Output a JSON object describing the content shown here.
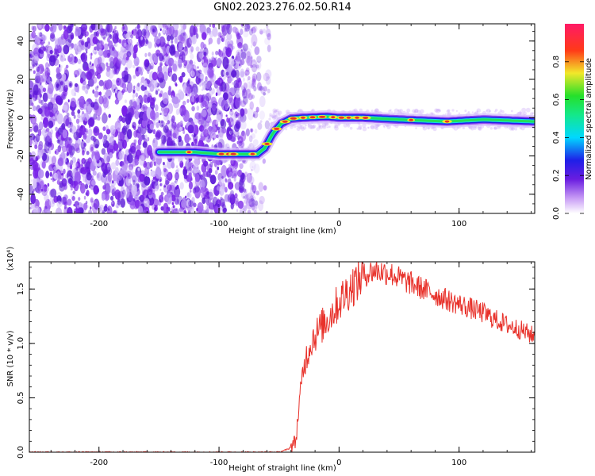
{
  "title": "GN02.2023.276.02.50.R14",
  "colors": {
    "snr_line": "#e8322b",
    "scatter_bg": "#7a22e8",
    "track_core": "#e8322b"
  },
  "chart_data": [
    {
      "type": "heatmap",
      "name": "spectrogram",
      "xlabel": "Height of straight line (km)",
      "ylabel": "Frequency (Hz)",
      "xlim": [
        -258,
        163
      ],
      "ylim": [
        -50,
        49
      ],
      "xticks": [
        -200,
        -100,
        0,
        100
      ],
      "xtick_labels": [
        "-200",
        "-100",
        "0",
        "100"
      ],
      "yticks": [
        -40,
        -20,
        0,
        20,
        40
      ],
      "ytick_labels": [
        "-40",
        "-20",
        "0",
        "20",
        "40"
      ],
      "grid": false,
      "colorbar": {
        "label": "Normalized spectral amplitude",
        "range": [
          0,
          1
        ],
        "ticks": [
          0.0,
          0.2,
          0.4,
          0.6,
          0.8
        ],
        "tick_labels": [
          "0.0",
          "0.2",
          "0.4",
          "0.6",
          "0.8"
        ],
        "colormap": "rainbow (white-violet-blue-cyan-green-yellow-red-magenta)"
      },
      "signal_track": [
        {
          "x": -150,
          "y": -18
        },
        {
          "x": -120,
          "y": -18
        },
        {
          "x": -100,
          "y": -19
        },
        {
          "x": -80,
          "y": -19
        },
        {
          "x": -68,
          "y": -19
        },
        {
          "x": -62,
          "y": -16
        },
        {
          "x": -55,
          "y": -8
        },
        {
          "x": -48,
          "y": -3
        },
        {
          "x": -40,
          "y": -0.5
        },
        {
          "x": -30,
          "y": 0
        },
        {
          "x": -10,
          "y": 0.5
        },
        {
          "x": 0,
          "y": 0
        },
        {
          "x": 20,
          "y": 0
        },
        {
          "x": 50,
          "y": -1
        },
        {
          "x": 90,
          "y": -2
        },
        {
          "x": 120,
          "y": -1
        },
        {
          "x": 163,
          "y": -2
        }
      ]
    },
    {
      "type": "line",
      "name": "snr",
      "xlabel": "Height of straight line (km)",
      "ylabel": "SNR (10 * v/v)",
      "y_multiplier": "(x10⁴)",
      "xlim": [
        -258,
        163
      ],
      "ylim": [
        0,
        1.75
      ],
      "xticks": [
        -200,
        -100,
        0,
        100
      ],
      "xtick_labels": [
        "-200",
        "-100",
        "0",
        "100"
      ],
      "yticks": [
        0.0,
        0.5,
        1.0,
        1.5
      ],
      "ytick_labels": [
        "0.0",
        "0.5",
        "1.0",
        "1.5"
      ],
      "grid": false,
      "x": [
        -258,
        -200,
        -150,
        -100,
        -70,
        -50,
        -42,
        -38,
        -36,
        -34,
        -32,
        -30,
        -28,
        -25,
        -22,
        -18,
        -15,
        -10,
        -5,
        0,
        5,
        10,
        15,
        20,
        25,
        30,
        35,
        40,
        45,
        50,
        60,
        70,
        80,
        90,
        100,
        110,
        120,
        130,
        140,
        150,
        160,
        163
      ],
      "y": [
        0.0,
        0.0,
        0.0,
        0.0,
        0.0,
        0.0,
        0.03,
        0.08,
        0.1,
        0.35,
        0.55,
        0.75,
        0.85,
        0.95,
        1.05,
        1.1,
        1.15,
        1.22,
        1.3,
        1.38,
        1.45,
        1.52,
        1.57,
        1.62,
        1.65,
        1.67,
        1.66,
        1.65,
        1.63,
        1.6,
        1.55,
        1.5,
        1.45,
        1.4,
        1.36,
        1.32,
        1.28,
        1.22,
        1.17,
        1.13,
        1.08,
        1.06
      ]
    }
  ]
}
